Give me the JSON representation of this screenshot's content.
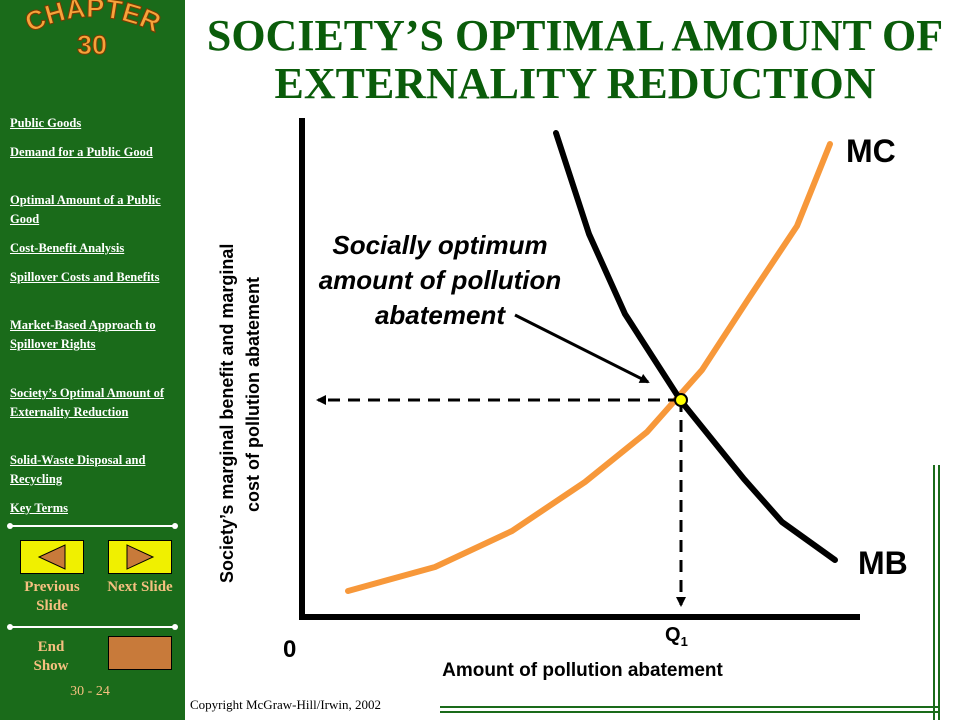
{
  "sidebar": {
    "logo": {
      "word": "CHAPTER",
      "number": "30"
    },
    "links": [
      "Public Goods",
      "Demand for a Public Good",
      "Optimal Amount of a Public Good",
      "Cost-Benefit Analysis",
      "Spillover Costs and Benefits",
      "Market-Based Approach to Spillover Rights",
      "Society’s Optimal Amount of Externality Reduction",
      "Solid-Waste Disposal and Recycling",
      "Key Terms"
    ],
    "previous_label": "Previous Slide",
    "next_label": "Next Slide",
    "end_label": "End Show",
    "slide_number": "30 - 24"
  },
  "title": "SOCIETY’S OPTIMAL AMOUNT OF EXTERNALITY REDUCTION",
  "copyright": "Copyright McGraw-Hill/Irwin,  2002",
  "colors": {
    "sidebar": "#1a6b1a",
    "title": "#0a5c0a",
    "mc_curve": "#f7983a",
    "mb_curve": "#000000",
    "equilibrium_dot": "#ffff00",
    "button": "#f0f000"
  },
  "chart_data": {
    "type": "line",
    "ylabel": "Society’s marginal benefit and marginal cost of pollution abatement",
    "xlabel": "Amount of pollution abatement",
    "origin_label": "0",
    "equilibrium_label": "Q",
    "equilibrium_subscript": "1",
    "annotation": "Socially optimum amount of pollution abatement",
    "series": [
      {
        "name": "MC",
        "shape": "upward-sloping",
        "color": "#f7983a"
      },
      {
        "name": "MB",
        "shape": "downward-sloping",
        "color": "#000000"
      }
    ]
  }
}
